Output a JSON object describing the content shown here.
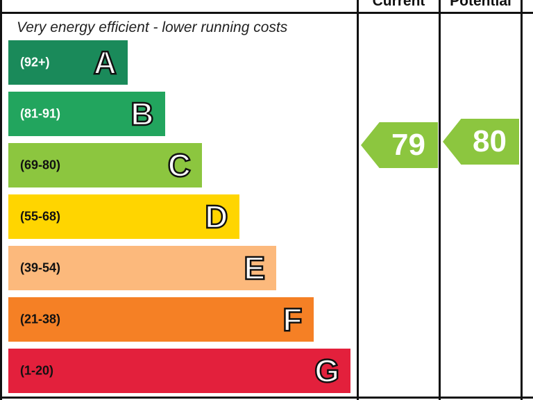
{
  "header": {
    "current_label": "Current",
    "potential_label": "Potential"
  },
  "top_caption": "Very energy efficient - lower running costs",
  "chart_data": {
    "type": "bar",
    "bands": [
      {
        "letter": "A",
        "range": "(92+)",
        "color": "#1a8a5a",
        "range_text_color": "#ffffff"
      },
      {
        "letter": "B",
        "range": "(81-91)",
        "color": "#22a55e",
        "range_text_color": "#ffffff"
      },
      {
        "letter": "C",
        "range": "(69-80)",
        "color": "#8cc63f",
        "range_text_color": "#111111"
      },
      {
        "letter": "D",
        "range": "(55-68)",
        "color": "#ffd500",
        "range_text_color": "#111111"
      },
      {
        "letter": "E",
        "range": "(39-54)",
        "color": "#fcb97c",
        "range_text_color": "#111111"
      },
      {
        "letter": "F",
        "range": "(21-38)",
        "color": "#f58025",
        "range_text_color": "#111111"
      },
      {
        "letter": "G",
        "range": "(1-20)",
        "color": "#e3203c",
        "range_text_color": "#111111"
      }
    ],
    "current": {
      "value": 79,
      "band": "C",
      "color": "#8cc63f"
    },
    "potential": {
      "value": 80,
      "band": "C",
      "color": "#8cc63f"
    }
  }
}
